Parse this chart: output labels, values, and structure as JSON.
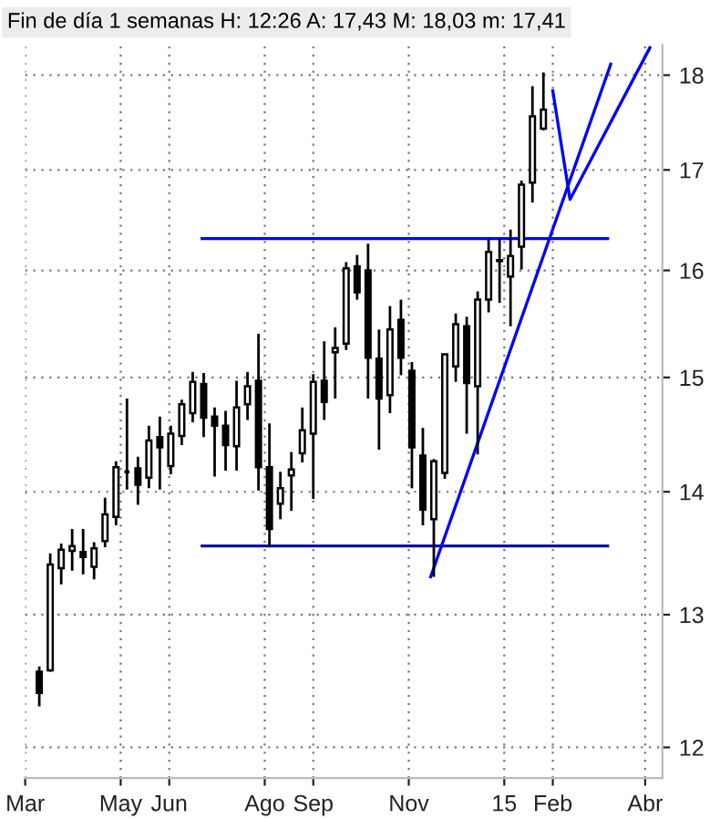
{
  "chart_data": {
    "type": "candlestick",
    "title": "Fin de día 1 semanas H: 12:26 A: 17,43 M: 18,03 m: 17,41",
    "x": [
      "2014-03-10",
      "2014-03-17",
      "2014-03-24",
      "2014-03-31",
      "2014-04-07",
      "2014-04-14",
      "2014-04-21",
      "2014-04-28",
      "2014-05-05",
      "2014-05-12",
      "2014-05-19",
      "2014-05-26",
      "2014-06-02",
      "2014-06-09",
      "2014-06-16",
      "2014-06-23",
      "2014-06-30",
      "2014-07-07",
      "2014-07-14",
      "2014-07-21",
      "2014-07-28",
      "2014-08-04",
      "2014-08-11",
      "2014-08-18",
      "2014-08-25",
      "2014-09-01",
      "2014-09-08",
      "2014-09-15",
      "2014-09-22",
      "2014-09-29",
      "2014-10-06",
      "2014-10-13",
      "2014-10-20",
      "2014-10-27",
      "2014-11-03",
      "2014-11-10",
      "2014-11-17",
      "2014-11-24",
      "2014-12-01",
      "2014-12-08",
      "2014-12-15",
      "2014-12-22",
      "2014-12-29",
      "2015-01-05",
      "2015-01-12",
      "2015-01-19",
      "2015-01-26"
    ],
    "ohlc": [
      [
        12.56,
        12.6,
        12.3,
        12.4
      ],
      [
        12.57,
        13.49,
        12.56,
        13.4
      ],
      [
        13.37,
        13.57,
        13.24,
        13.52
      ],
      [
        13.51,
        13.69,
        13.35,
        13.55
      ],
      [
        13.5,
        13.69,
        13.32,
        13.46
      ],
      [
        13.38,
        13.58,
        13.28,
        13.53
      ],
      [
        13.59,
        13.95,
        13.54,
        13.81
      ],
      [
        13.79,
        14.26,
        13.72,
        14.21
      ],
      [
        14.17,
        14.81,
        14.02,
        14.17
      ],
      [
        14.2,
        14.3,
        13.89,
        14.06
      ],
      [
        14.12,
        14.57,
        14.03,
        14.44
      ],
      [
        14.47,
        14.65,
        14.02,
        14.38
      ],
      [
        14.22,
        14.57,
        14.15,
        14.5
      ],
      [
        14.48,
        14.8,
        14.4,
        14.76
      ],
      [
        14.68,
        15.05,
        14.6,
        14.96
      ],
      [
        14.94,
        15.04,
        14.47,
        14.64
      ],
      [
        14.65,
        14.73,
        14.13,
        14.57
      ],
      [
        14.57,
        14.7,
        14.18,
        14.4
      ],
      [
        14.39,
        14.97,
        14.18,
        14.73
      ],
      [
        14.76,
        15.05,
        14.62,
        14.92
      ],
      [
        14.97,
        15.4,
        14.01,
        14.21
      ],
      [
        14.21,
        14.59,
        13.54,
        13.69
      ],
      [
        13.9,
        14.17,
        13.77,
        14.03
      ],
      [
        14.14,
        14.34,
        13.84,
        14.19
      ],
      [
        14.33,
        14.73,
        14.25,
        14.53
      ],
      [
        14.5,
        15.03,
        13.94,
        14.96
      ],
      [
        14.97,
        15.33,
        14.62,
        14.78
      ],
      [
        15.23,
        15.46,
        14.81,
        15.27
      ],
      [
        15.31,
        16.08,
        15.25,
        16.02
      ],
      [
        16.04,
        16.15,
        15.72,
        15.79
      ],
      [
        16.0,
        16.26,
        14.81,
        15.18
      ],
      [
        15.17,
        15.44,
        14.36,
        14.81
      ],
      [
        14.84,
        15.66,
        14.68,
        15.44
      ],
      [
        15.53,
        15.72,
        15.02,
        15.18
      ],
      [
        15.06,
        15.14,
        14.03,
        14.38
      ],
      [
        14.31,
        14.55,
        13.72,
        13.85
      ],
      [
        13.77,
        14.28,
        13.3,
        14.26
      ],
      [
        14.16,
        15.21,
        14.11,
        15.21
      ],
      [
        15.1,
        15.59,
        14.96,
        15.49
      ],
      [
        15.47,
        15.56,
        14.5,
        14.95
      ],
      [
        14.92,
        15.8,
        14.32,
        15.72
      ],
      [
        15.72,
        16.3,
        15.6,
        16.18
      ],
      [
        16.1,
        16.31,
        15.69,
        16.09
      ],
      [
        15.94,
        16.4,
        15.47,
        16.14
      ],
      [
        16.23,
        16.89,
        16.01,
        16.85
      ],
      [
        16.87,
        17.88,
        16.67,
        17.56
      ],
      [
        17.43,
        18.03,
        17.41,
        17.63
      ]
    ],
    "series": [
      {
        "type": "line",
        "color": "#0000ff",
        "x": [
          "2014-06-22",
          "2015-03-08"
        ],
        "values": [
          16.31,
          16.31
        ]
      },
      {
        "type": "line",
        "color": "#1010b0",
        "x": [
          "2014-06-22",
          "2015-03-08"
        ],
        "values": [
          13.55,
          13.55
        ]
      },
      {
        "type": "line",
        "color": "#0000ff",
        "x": [
          "2014-11-15",
          "2015-03-10"
        ],
        "values": [
          13.3,
          18.12
        ]
      },
      {
        "type": "line",
        "color": "#0000ff",
        "x": [
          "2015-02-01",
          "2015-02-12",
          "2015-04-04"
        ],
        "values": [
          17.83,
          16.7,
          18.3
        ]
      }
    ],
    "log": true,
    "xlim": [
      "2014-03-01",
      "2015-04-12"
    ],
    "xticks": [
      {
        "value": "2014-03-01",
        "label": "Mar"
      },
      {
        "value": "2014-05-01",
        "label": "May"
      },
      {
        "value": "2014-06-01",
        "label": "Jun"
      },
      {
        "value": "2014-08-01",
        "label": "Ago"
      },
      {
        "value": "2014-09-01",
        "label": "Sep"
      },
      {
        "value": "2014-11-01",
        "label": "Nov"
      },
      {
        "value": "2015-01-01",
        "label": "15"
      },
      {
        "value": "2015-02-01",
        "label": "Feb"
      },
      {
        "value": "2015-04-01",
        "label": "Abr"
      }
    ],
    "ylim": [
      11.78,
      18.33
    ],
    "yticks": [
      12,
      13,
      14,
      15,
      16,
      17,
      18
    ],
    "grid": true,
    "marker": "none",
    "line_style": "solid"
  }
}
